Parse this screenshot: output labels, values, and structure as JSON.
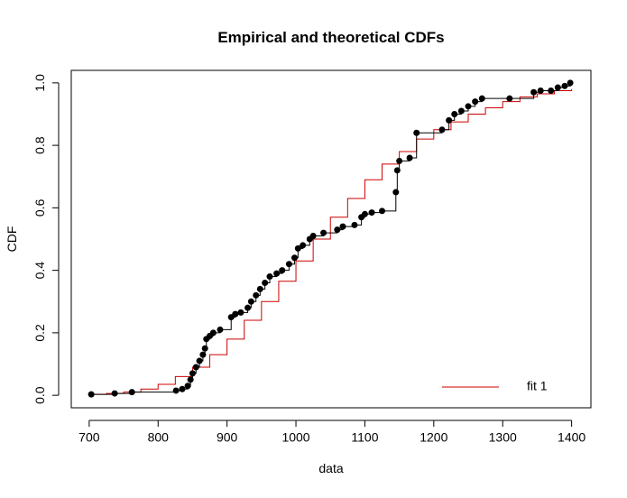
{
  "chart_data": {
    "type": "step",
    "title": "Empirical and theoretical CDFs",
    "x_label": "data",
    "y_label": "CDF",
    "xlim": [
      674,
      1428
    ],
    "ylim": [
      -0.04,
      1.04
    ],
    "xticks": [
      700,
      800,
      900,
      1000,
      1100,
      1200,
      1300,
      1400
    ],
    "yticks": [
      {
        "value": 0,
        "label": "0.0"
      },
      {
        "value": 0.2,
        "label": "0.2"
      },
      {
        "value": 0.4,
        "label": "0.4"
      },
      {
        "value": 0.6,
        "label": "0.6"
      },
      {
        "value": 0.8,
        "label": "0.8"
      },
      {
        "value": 1,
        "label": "1.0"
      }
    ],
    "legend": "bottom-right",
    "empirical": {
      "color": "#000000",
      "x": [
        703,
        737,
        762,
        826,
        835,
        843,
        847,
        850,
        855,
        860,
        865,
        868,
        870,
        875,
        880,
        890,
        906,
        912,
        920,
        930,
        935,
        942,
        948,
        955,
        962,
        972,
        980,
        990,
        998,
        1003,
        1010,
        1020,
        1025,
        1040,
        1060,
        1068,
        1085,
        1095,
        1100,
        1110,
        1125,
        1145,
        1147,
        1150,
        1165,
        1175,
        1212,
        1222,
        1230,
        1240,
        1250,
        1260,
        1270,
        1310,
        1345,
        1355,
        1370,
        1380,
        1390,
        1398
      ],
      "values": [
        0.003,
        0.006,
        0.01,
        0.015,
        0.02,
        0.03,
        0.05,
        0.07,
        0.09,
        0.11,
        0.13,
        0.15,
        0.18,
        0.19,
        0.2,
        0.21,
        0.25,
        0.26,
        0.265,
        0.28,
        0.3,
        0.32,
        0.34,
        0.36,
        0.38,
        0.39,
        0.4,
        0.42,
        0.44,
        0.47,
        0.48,
        0.5,
        0.51,
        0.52,
        0.53,
        0.54,
        0.545,
        0.57,
        0.58,
        0.585,
        0.59,
        0.65,
        0.72,
        0.75,
        0.76,
        0.84,
        0.85,
        0.88,
        0.9,
        0.91,
        0.925,
        0.94,
        0.95,
        0.95,
        0.97,
        0.975,
        0.975,
        0.985,
        0.99,
        1.0
      ]
    },
    "series": [
      {
        "name": "fit 1",
        "color": "#cc0000",
        "x": [
          700,
          725,
          750,
          775,
          800,
          825,
          850,
          875,
          900,
          925,
          950,
          975,
          1000,
          1025,
          1050,
          1075,
          1100,
          1125,
          1150,
          1175,
          1200,
          1225,
          1250,
          1275,
          1300,
          1325,
          1350,
          1375,
          1400
        ],
        "values": [
          0.003,
          0.006,
          0.01,
          0.02,
          0.035,
          0.06,
          0.09,
          0.13,
          0.18,
          0.24,
          0.3,
          0.365,
          0.43,
          0.5,
          0.57,
          0.63,
          0.69,
          0.74,
          0.78,
          0.82,
          0.85,
          0.875,
          0.9,
          0.92,
          0.94,
          0.955,
          0.965,
          0.975,
          0.98
        ]
      }
    ]
  }
}
